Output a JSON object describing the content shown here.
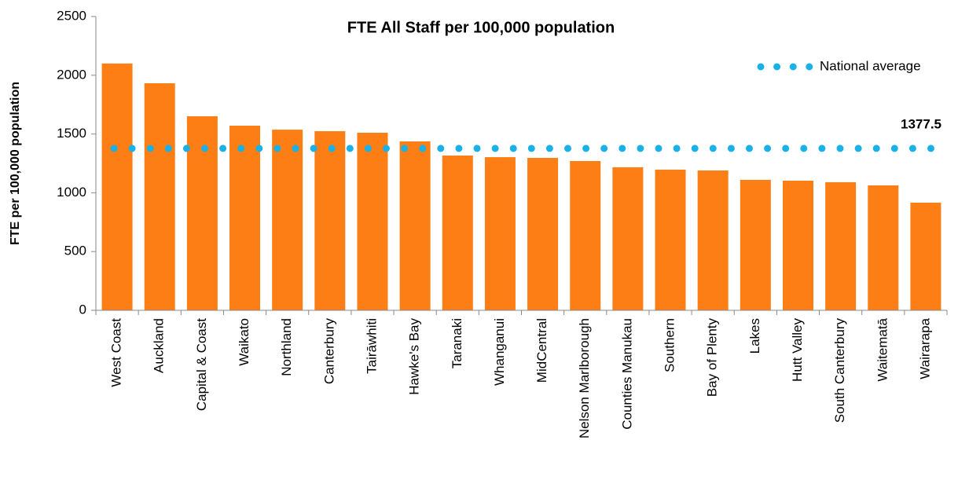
{
  "chart_data": {
    "type": "bar",
    "title": "FTE All Staff per 100,000 population",
    "y_label": "FTE per 100,000 population",
    "categories": [
      "West Coast",
      "Auckland",
      "Capital & Coast",
      "Waikato",
      "Northland",
      "Canterbury",
      "Tairāwhiti",
      "Hawke's Bay",
      "Taranaki",
      "Whanganui",
      "MidCentral",
      "Nelson Marlborough",
      "Counties Manukau",
      "Southern",
      "Bay of Plenty",
      "Lakes",
      "Hutt Valley",
      "South Canterbury",
      "Waitematā",
      "Wairarapa"
    ],
    "values": [
      2100,
      1932,
      1651,
      1571,
      1537,
      1524,
      1511,
      1437,
      1317,
      1303,
      1297,
      1270,
      1217,
      1197,
      1190,
      1110,
      1103,
      1090,
      1063,
      916
    ],
    "color": "#fd7e14",
    "reference": {
      "name": "National average",
      "value": 1377.5,
      "color": "#1ab0e8"
    },
    "ylim": [
      0,
      2500
    ],
    "yticks": [
      0,
      500,
      1000,
      1500,
      2000,
      2500
    ],
    "grid": false,
    "legend": "top-right"
  }
}
